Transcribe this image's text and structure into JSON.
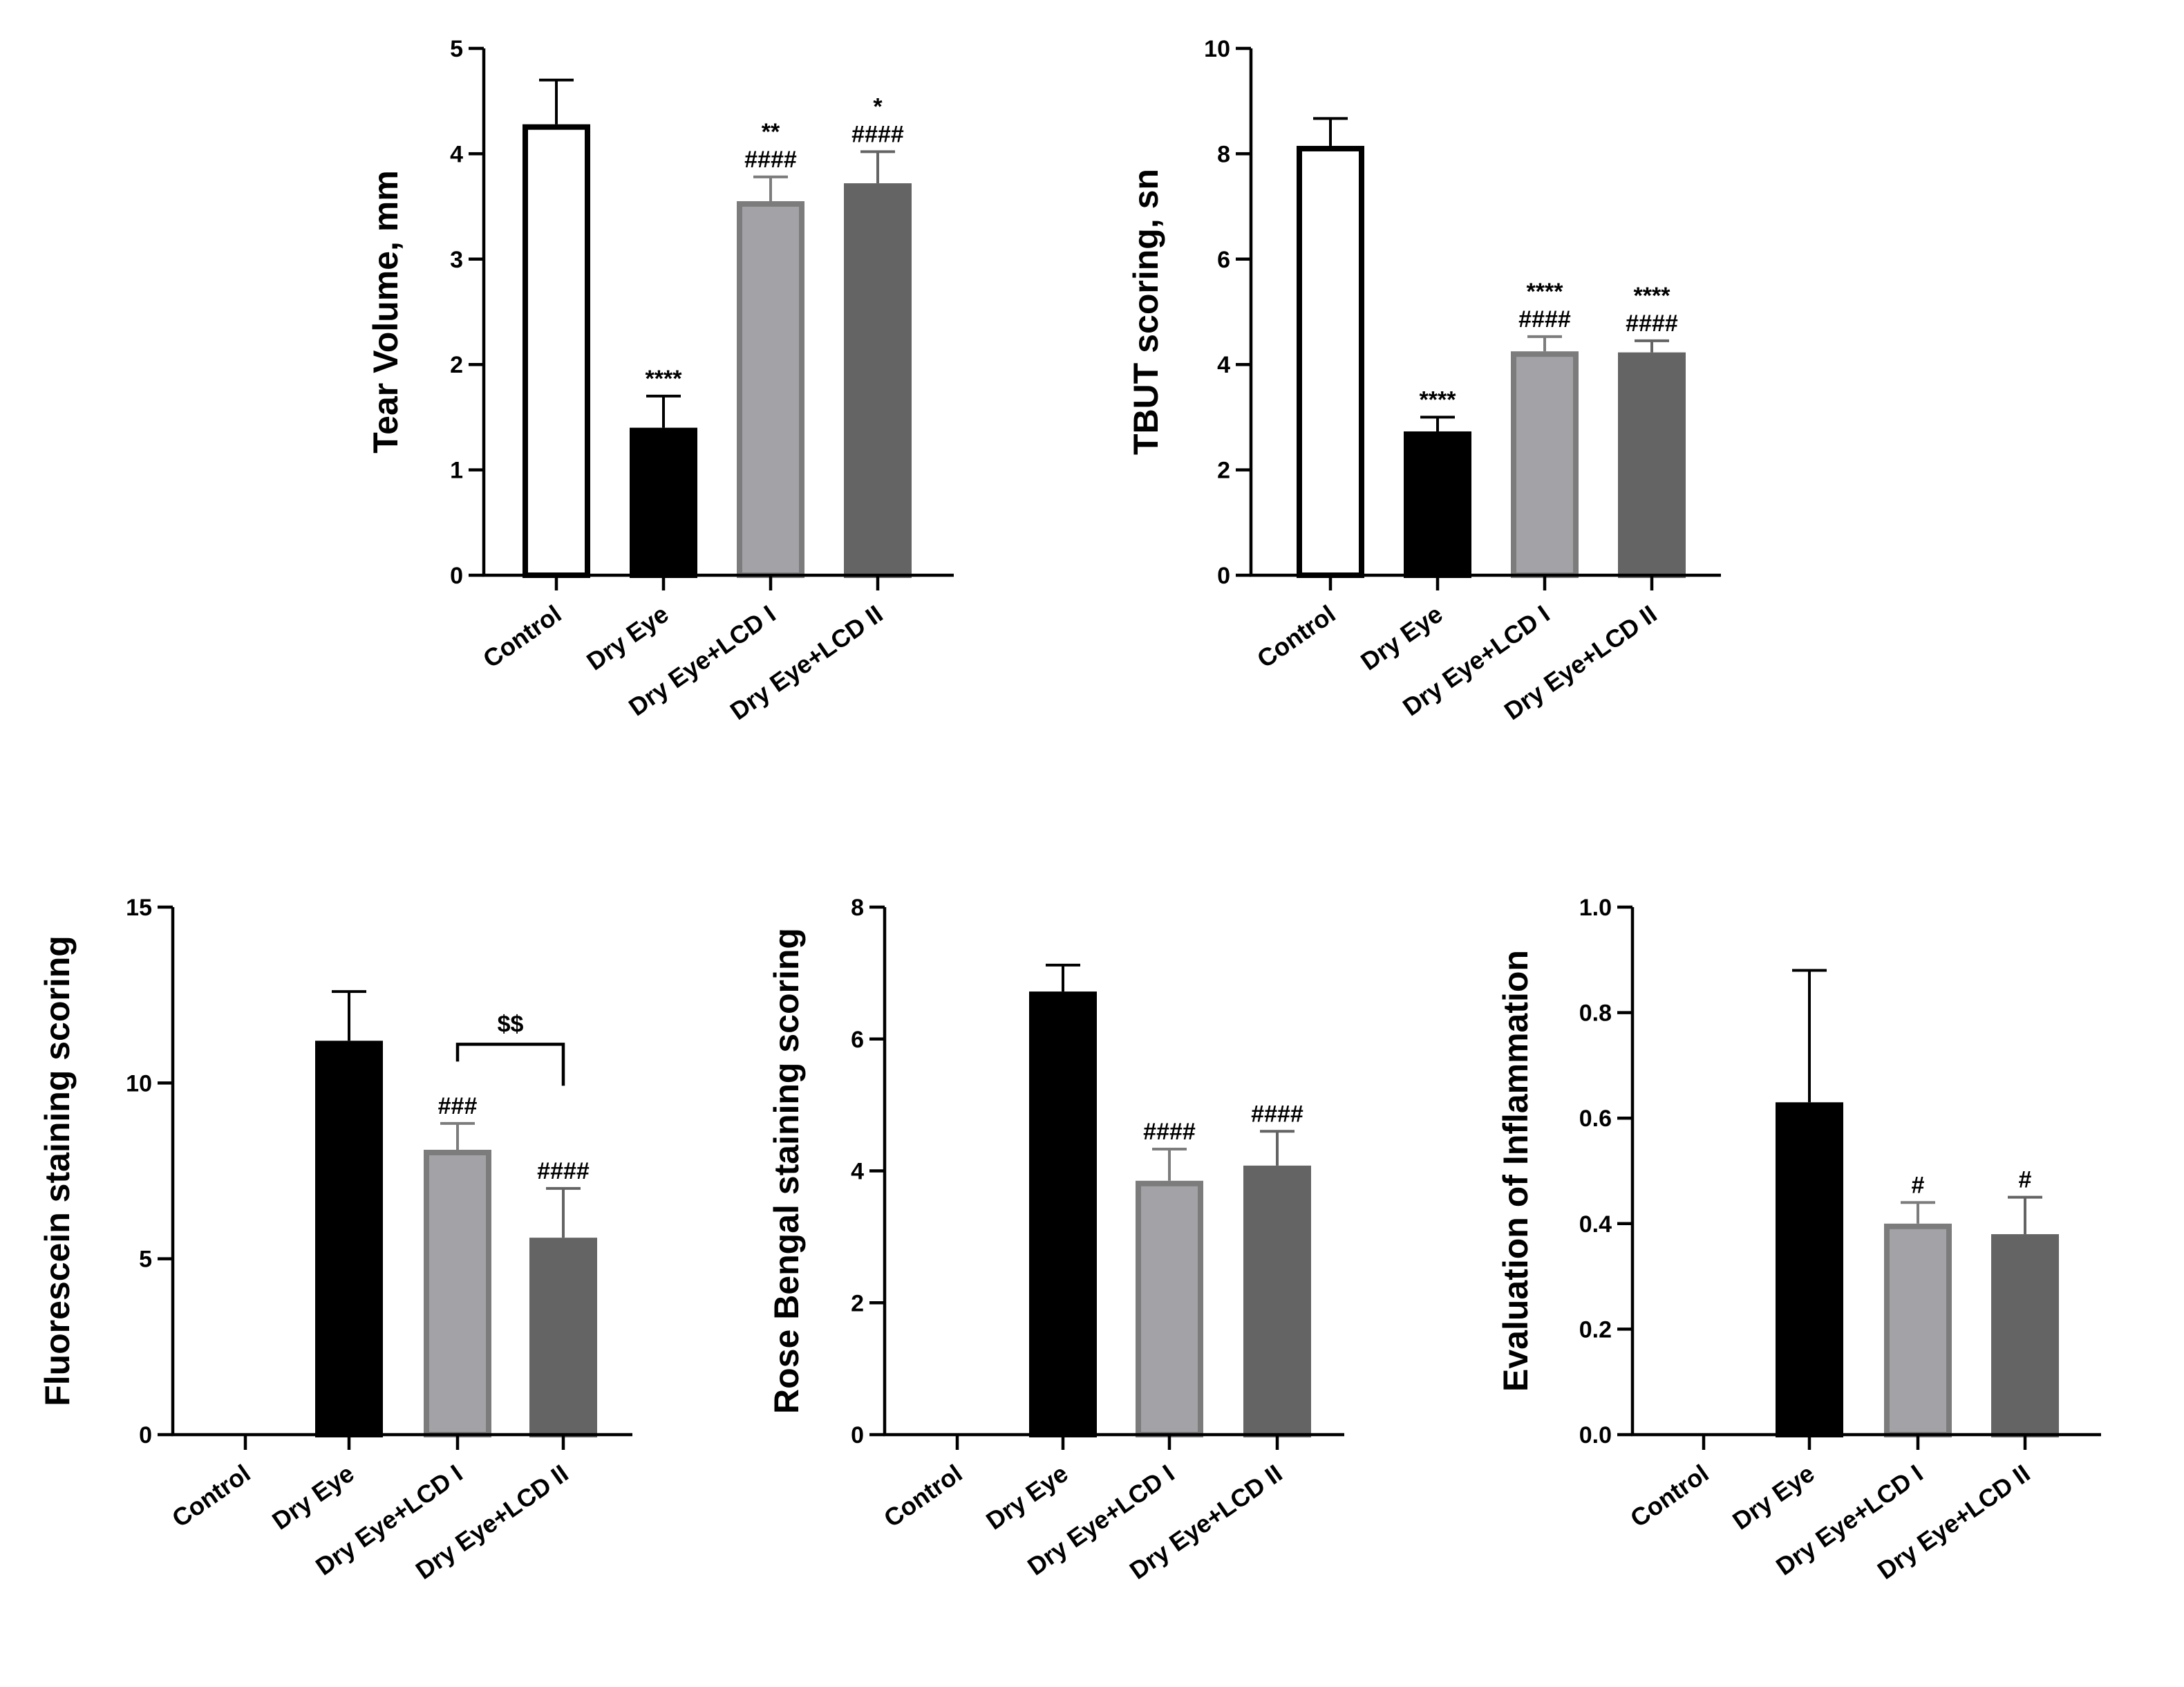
{
  "colors": {
    "Control": {
      "fill": "#ffffff",
      "stroke": "#000000"
    },
    "Dry Eye": {
      "fill": "#000000",
      "stroke": "#000000"
    },
    "Dry Eye+LCD I": {
      "fill": "#a3a3a7",
      "stroke": "#7c7c7c"
    },
    "Dry Eye+LCD II": {
      "fill": "#646464",
      "stroke": "#646464"
    }
  },
  "chart_data": [
    {
      "id": "tear-volume",
      "type": "bar",
      "ylabel": "Tear Volume, mm",
      "categories": [
        "Control",
        "Dry Eye",
        "Dry Eye+LCD I",
        "Dry Eye+LCD II"
      ],
      "values": [
        4.28,
        1.4,
        3.55,
        3.72
      ],
      "errors": [
        0.42,
        0.3,
        0.23,
        0.3
      ],
      "ylim": [
        0,
        5
      ],
      "yticks": [
        "0",
        "1",
        "2",
        "3",
        "4",
        "5"
      ],
      "annotations": [
        [],
        [
          "****"
        ],
        [
          "**",
          "####"
        ],
        [
          "*",
          "####"
        ]
      ]
    },
    {
      "id": "tbut-scoring",
      "type": "bar",
      "ylabel": "TBUT scoring, sn",
      "categories": [
        "Control",
        "Dry Eye",
        "Dry Eye+LCD I",
        "Dry Eye+LCD II"
      ],
      "values": [
        8.15,
        2.73,
        4.25,
        4.23
      ],
      "errors": [
        0.52,
        0.27,
        0.28,
        0.22
      ],
      "ylim": [
        0,
        10
      ],
      "yticks": [
        "0",
        "2",
        "4",
        "6",
        "8",
        "10"
      ],
      "annotations": [
        [],
        [
          "****"
        ],
        [
          "****",
          "####"
        ],
        [
          "****",
          "####"
        ]
      ]
    },
    {
      "id": "fluorescein-staining",
      "type": "bar",
      "ylabel": "Fluorescein staining scoring",
      "categories": [
        "Control",
        "Dry Eye",
        "Dry Eye+LCD I",
        "Dry Eye+LCD II"
      ],
      "values": [
        0,
        11.2,
        8.1,
        5.6
      ],
      "errors": [
        0,
        1.4,
        0.75,
        1.4
      ],
      "ylim": [
        0,
        15
      ],
      "yticks": [
        "0",
        "5",
        "10",
        "15"
      ],
      "annotations": [
        [],
        [],
        [
          "###"
        ],
        [
          "####"
        ]
      ],
      "bracket": {
        "from": 2,
        "to": 3,
        "label": "$$",
        "y": 11.1
      }
    },
    {
      "id": "rose-bengal-staining",
      "type": "bar",
      "ylabel": "Rose Bengal staining scoring",
      "categories": [
        "Control",
        "Dry Eye",
        "Dry Eye+LCD I",
        "Dry Eye+LCD II"
      ],
      "values": [
        0,
        6.72,
        3.85,
        4.08
      ],
      "errors": [
        0,
        0.4,
        0.48,
        0.52
      ],
      "ylim": [
        0,
        8
      ],
      "yticks": [
        "0",
        "2",
        "4",
        "6",
        "8"
      ],
      "annotations": [
        [],
        [],
        [
          "####"
        ],
        [
          "####"
        ]
      ]
    },
    {
      "id": "inflammation",
      "type": "bar",
      "ylabel": "Evaluation of Inflammation",
      "categories": [
        "Control",
        "Dry Eye",
        "Dry Eye+LCD I",
        "Dry Eye+LCD II"
      ],
      "values": [
        0,
        0.63,
        0.4,
        0.38
      ],
      "errors": [
        0,
        0.25,
        0.04,
        0.07
      ],
      "ylim": [
        0,
        1.0
      ],
      "yticks": [
        "0.0",
        "0.2",
        "0.4",
        "0.6",
        "0.8",
        "1.0"
      ],
      "annotations": [
        [],
        [],
        [
          "#"
        ],
        [
          "#"
        ]
      ]
    }
  ]
}
